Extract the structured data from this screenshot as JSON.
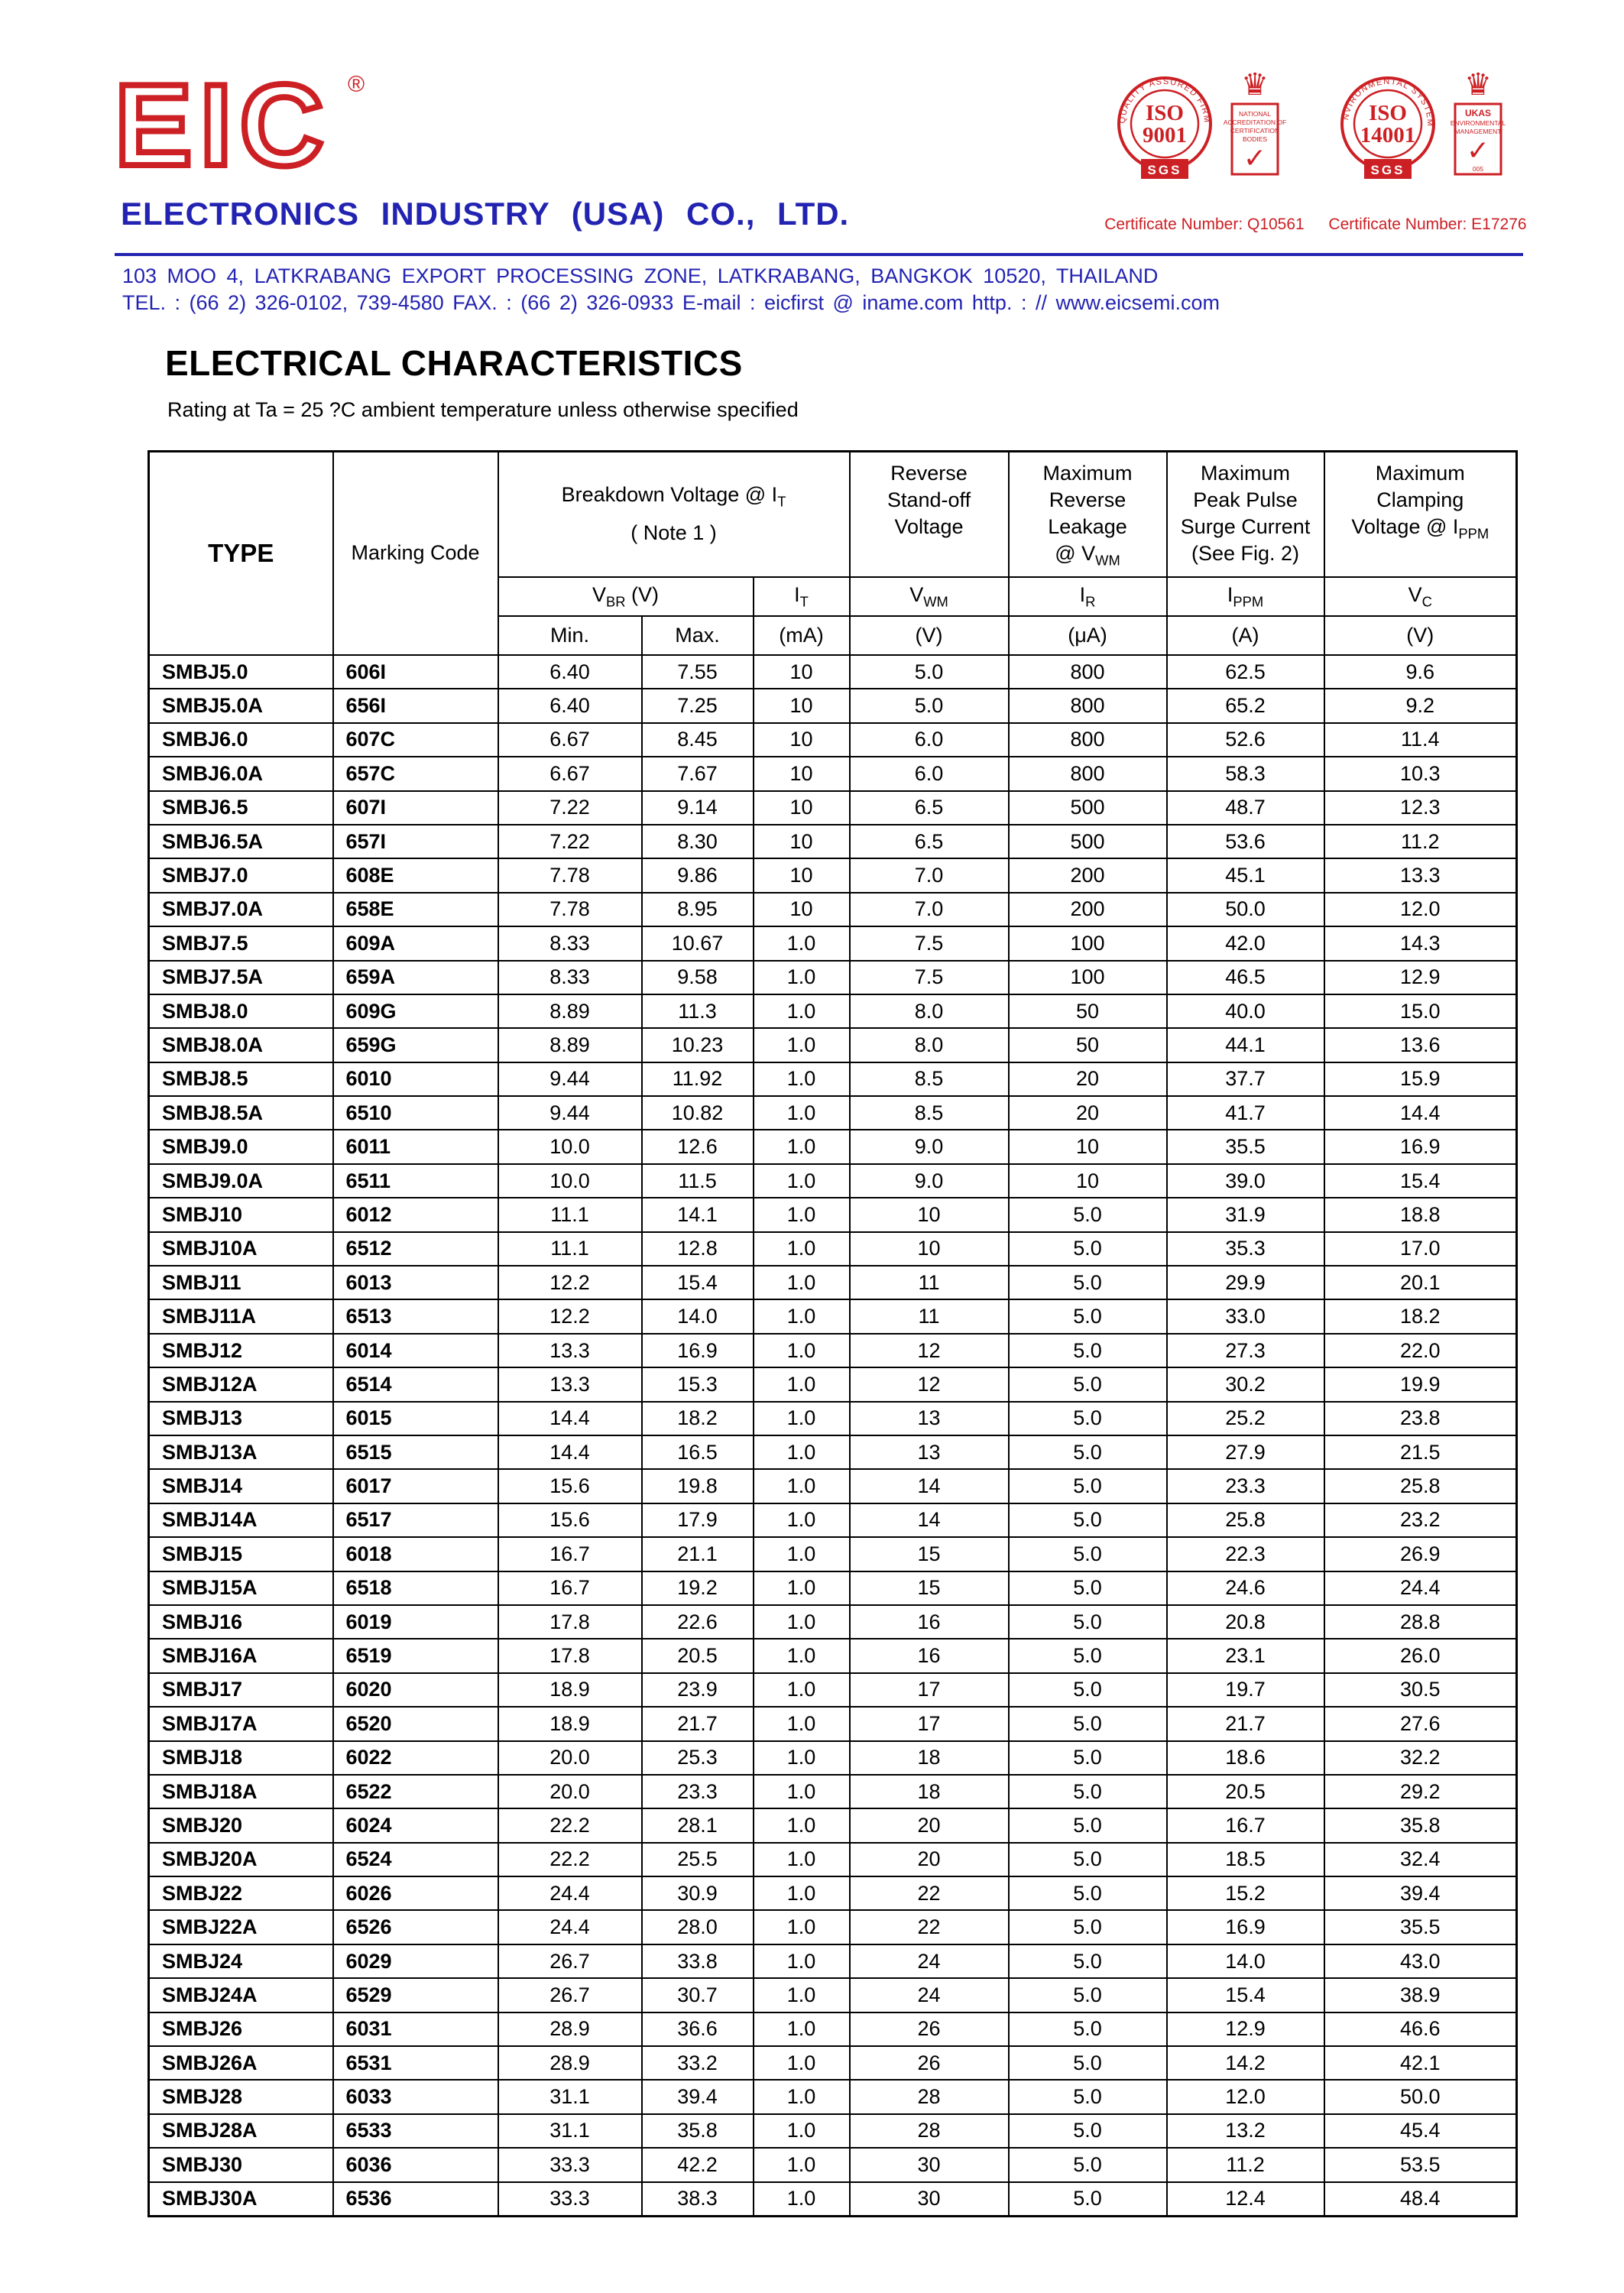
{
  "logo": {
    "text": "EIC",
    "registered": "®"
  },
  "company": {
    "name": "ELECTRONICS INDUSTRY (USA) CO., LTD.",
    "address": "103  MOO 4,  LATKRABANG EXPORT PROCESSING ZONE,  LATKRABANG,  BANGKOK  10520,  THAILAND",
    "contact": "TEL. : (66 2) 326-0102,  739-4580    FAX. : (66 2) 326-0933   E-mail : eicfirst @ iname.com   http. : // www.eicsemi.com"
  },
  "certifications": [
    {
      "ring_text": "QUALITY ASSURED FIRM",
      "iso": "ISO",
      "number": "9001",
      "sgs": "SGS",
      "crown": "♛",
      "check": "✓",
      "emblem_lines": [
        "NATIONAL",
        "ACCREDITATION OF",
        "CERTIFICATION",
        "BODIES"
      ],
      "caption": "Certificate Number: Q10561"
    },
    {
      "ring_text": "ENVIRONMENTAL SYSTEM",
      "iso": "ISO",
      "number": "14001",
      "sgs": "SGS",
      "crown": "♛",
      "check": "✓",
      "emblem_lines": [
        "UKAS",
        "ENVIRONMENTAL",
        "MANAGEMENT",
        "005"
      ],
      "caption": "Certificate Number: E17276"
    }
  ],
  "title": "ELECTRICAL CHARACTERISTICS",
  "subtitle": "Rating at Ta = 25 ?C ambient temperature unless otherwise specified",
  "table": {
    "col_type": "TYPE",
    "col_marking": "Marking Code",
    "grp_breakdown": "Breakdown Voltage @  I~T~\n( Note 1 )",
    "grp_standoff": "Reverse\nStand-off\nVoltage",
    "grp_leakage": "Maximum\nReverse\nLeakage\n@ V~WM~",
    "grp_surge": "Maximum\nPeak Pulse\nSurge Current\n(See Fig. 2)",
    "grp_clamping": "Maximum\nClamping\nVoltage @ I~PPM~",
    "sub_vbr": "V~BR~  (V)",
    "sub_it": "I~T~",
    "sub_vwm": "V~WM~",
    "sub_ir": "I~R~",
    "sub_ippm": "I~PPM~",
    "sub_vc": "V~C~",
    "unit_min": "Min.",
    "unit_max": "Max.",
    "unit_ma": "(mA)",
    "unit_v1": "(V)",
    "unit_ua": "(μA)",
    "unit_a": "(A)",
    "unit_v2": "(V)",
    "rows": [
      [
        "SMBJ5.0",
        "606I",
        "6.40",
        "7.55",
        "10",
        "5.0",
        "800",
        "62.5",
        "9.6"
      ],
      [
        "SMBJ5.0A",
        "656I",
        "6.40",
        "7.25",
        "10",
        "5.0",
        "800",
        "65.2",
        "9.2"
      ],
      [
        "SMBJ6.0",
        "607C",
        "6.67",
        "8.45",
        "10",
        "6.0",
        "800",
        "52.6",
        "11.4"
      ],
      [
        "SMBJ6.0A",
        "657C",
        "6.67",
        "7.67",
        "10",
        "6.0",
        "800",
        "58.3",
        "10.3"
      ],
      [
        "SMBJ6.5",
        "607I",
        "7.22",
        "9.14",
        "10",
        "6.5",
        "500",
        "48.7",
        "12.3"
      ],
      [
        "SMBJ6.5A",
        "657I",
        "7.22",
        "8.30",
        "10",
        "6.5",
        "500",
        "53.6",
        "11.2"
      ],
      [
        "SMBJ7.0",
        "608E",
        "7.78",
        "9.86",
        "10",
        "7.0",
        "200",
        "45.1",
        "13.3"
      ],
      [
        "SMBJ7.0A",
        "658E",
        "7.78",
        "8.95",
        "10",
        "7.0",
        "200",
        "50.0",
        "12.0"
      ],
      [
        "SMBJ7.5",
        "609A",
        "8.33",
        "10.67",
        "1.0",
        "7.5",
        "100",
        "42.0",
        "14.3"
      ],
      [
        "SMBJ7.5A",
        "659A",
        "8.33",
        "9.58",
        "1.0",
        "7.5",
        "100",
        "46.5",
        "12.9"
      ],
      [
        "SMBJ8.0",
        "609G",
        "8.89",
        "11.3",
        "1.0",
        "8.0",
        "50",
        "40.0",
        "15.0"
      ],
      [
        "SMBJ8.0A",
        "659G",
        "8.89",
        "10.23",
        "1.0",
        "8.0",
        "50",
        "44.1",
        "13.6"
      ],
      [
        "SMBJ8.5",
        "6010",
        "9.44",
        "11.92",
        "1.0",
        "8.5",
        "20",
        "37.7",
        "15.9"
      ],
      [
        "SMBJ8.5A",
        "6510",
        "9.44",
        "10.82",
        "1.0",
        "8.5",
        "20",
        "41.7",
        "14.4"
      ],
      [
        "SMBJ9.0",
        "6011",
        "10.0",
        "12.6",
        "1.0",
        "9.0",
        "10",
        "35.5",
        "16.9"
      ],
      [
        "SMBJ9.0A",
        "6511",
        "10.0",
        "11.5",
        "1.0",
        "9.0",
        "10",
        "39.0",
        "15.4"
      ],
      [
        "SMBJ10",
        "6012",
        "11.1",
        "14.1",
        "1.0",
        "10",
        "5.0",
        "31.9",
        "18.8"
      ],
      [
        "SMBJ10A",
        "6512",
        "11.1",
        "12.8",
        "1.0",
        "10",
        "5.0",
        "35.3",
        "17.0"
      ],
      [
        "SMBJ11",
        "6013",
        "12.2",
        "15.4",
        "1.0",
        "11",
        "5.0",
        "29.9",
        "20.1"
      ],
      [
        "SMBJ11A",
        "6513",
        "12.2",
        "14.0",
        "1.0",
        "11",
        "5.0",
        "33.0",
        "18.2"
      ],
      [
        "SMBJ12",
        "6014",
        "13.3",
        "16.9",
        "1.0",
        "12",
        "5.0",
        "27.3",
        "22.0"
      ],
      [
        "SMBJ12A",
        "6514",
        "13.3",
        "15.3",
        "1.0",
        "12",
        "5.0",
        "30.2",
        "19.9"
      ],
      [
        "SMBJ13",
        "6015",
        "14.4",
        "18.2",
        "1.0",
        "13",
        "5.0",
        "25.2",
        "23.8"
      ],
      [
        "SMBJ13A",
        "6515",
        "14.4",
        "16.5",
        "1.0",
        "13",
        "5.0",
        "27.9",
        "21.5"
      ],
      [
        "SMBJ14",
        "6017",
        "15.6",
        "19.8",
        "1.0",
        "14",
        "5.0",
        "23.3",
        "25.8"
      ],
      [
        "SMBJ14A",
        "6517",
        "15.6",
        "17.9",
        "1.0",
        "14",
        "5.0",
        "25.8",
        "23.2"
      ],
      [
        "SMBJ15",
        "6018",
        "16.7",
        "21.1",
        "1.0",
        "15",
        "5.0",
        "22.3",
        "26.9"
      ],
      [
        "SMBJ15A",
        "6518",
        "16.7",
        "19.2",
        "1.0",
        "15",
        "5.0",
        "24.6",
        "24.4"
      ],
      [
        "SMBJ16",
        "6019",
        "17.8",
        "22.6",
        "1.0",
        "16",
        "5.0",
        "20.8",
        "28.8"
      ],
      [
        "SMBJ16A",
        "6519",
        "17.8",
        "20.5",
        "1.0",
        "16",
        "5.0",
        "23.1",
        "26.0"
      ],
      [
        "SMBJ17",
        "6020",
        "18.9",
        "23.9",
        "1.0",
        "17",
        "5.0",
        "19.7",
        "30.5"
      ],
      [
        "SMBJ17A",
        "6520",
        "18.9",
        "21.7",
        "1.0",
        "17",
        "5.0",
        "21.7",
        "27.6"
      ],
      [
        "SMBJ18",
        "6022",
        "20.0",
        "25.3",
        "1.0",
        "18",
        "5.0",
        "18.6",
        "32.2"
      ],
      [
        "SMBJ18A",
        "6522",
        "20.0",
        "23.3",
        "1.0",
        "18",
        "5.0",
        "20.5",
        "29.2"
      ],
      [
        "SMBJ20",
        "6024",
        "22.2",
        "28.1",
        "1.0",
        "20",
        "5.0",
        "16.7",
        "35.8"
      ],
      [
        "SMBJ20A",
        "6524",
        "22.2",
        "25.5",
        "1.0",
        "20",
        "5.0",
        "18.5",
        "32.4"
      ],
      [
        "SMBJ22",
        "6026",
        "24.4",
        "30.9",
        "1.0",
        "22",
        "5.0",
        "15.2",
        "39.4"
      ],
      [
        "SMBJ22A",
        "6526",
        "24.4",
        "28.0",
        "1.0",
        "22",
        "5.0",
        "16.9",
        "35.5"
      ],
      [
        "SMBJ24",
        "6029",
        "26.7",
        "33.8",
        "1.0",
        "24",
        "5.0",
        "14.0",
        "43.0"
      ],
      [
        "SMBJ24A",
        "6529",
        "26.7",
        "30.7",
        "1.0",
        "24",
        "5.0",
        "15.4",
        "38.9"
      ],
      [
        "SMBJ26",
        "6031",
        "28.9",
        "36.6",
        "1.0",
        "26",
        "5.0",
        "12.9",
        "46.6"
      ],
      [
        "SMBJ26A",
        "6531",
        "28.9",
        "33.2",
        "1.0",
        "26",
        "5.0",
        "14.2",
        "42.1"
      ],
      [
        "SMBJ28",
        "6033",
        "31.1",
        "39.4",
        "1.0",
        "28",
        "5.0",
        "12.0",
        "50.0"
      ],
      [
        "SMBJ28A",
        "6533",
        "31.1",
        "35.8",
        "1.0",
        "28",
        "5.0",
        "13.2",
        "45.4"
      ],
      [
        "SMBJ30",
        "6036",
        "33.3",
        "42.2",
        "1.0",
        "30",
        "5.0",
        "11.2",
        "53.5"
      ],
      [
        "SMBJ30A",
        "6536",
        "33.3",
        "38.3",
        "1.0",
        "30",
        "5.0",
        "12.4",
        "48.4"
      ]
    ]
  }
}
